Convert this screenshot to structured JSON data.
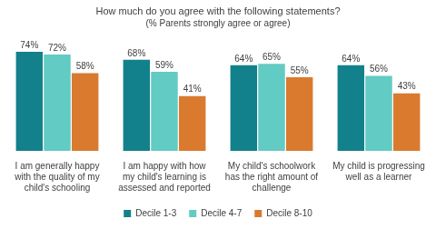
{
  "chart_data": {
    "type": "bar",
    "title": "How much do you agree with the following statements?",
    "subtitle": "(% Parents strongly agree or agree)",
    "categories": [
      "I am generally happy with the quality of my child's schooling",
      "I am happy with how my child's learning is assessed and reported",
      "My child's schoolwork has the right amount of challenge",
      "My child is progressing well as a learner"
    ],
    "series": [
      {
        "name": "Decile 1-3",
        "color": "#13818b",
        "values": [
          74,
          68,
          64,
          64
        ],
        "value_labels": [
          "74%",
          "68%",
          "64%",
          "64%"
        ]
      },
      {
        "name": "Decile 4-7",
        "color": "#62cbc3",
        "values": [
          72,
          59,
          65,
          56
        ],
        "value_labels": [
          "72%",
          "59%",
          "65%",
          "56%"
        ]
      },
      {
        "name": "Decile 8-10",
        "color": "#d97a2f",
        "values": [
          58,
          41,
          55,
          43
        ],
        "value_labels": [
          "58%",
          "41%",
          "55%",
          "43%"
        ]
      }
    ],
    "legend": "bottom",
    "data_labels": true,
    "grid": false,
    "tick_labels": "x"
  }
}
